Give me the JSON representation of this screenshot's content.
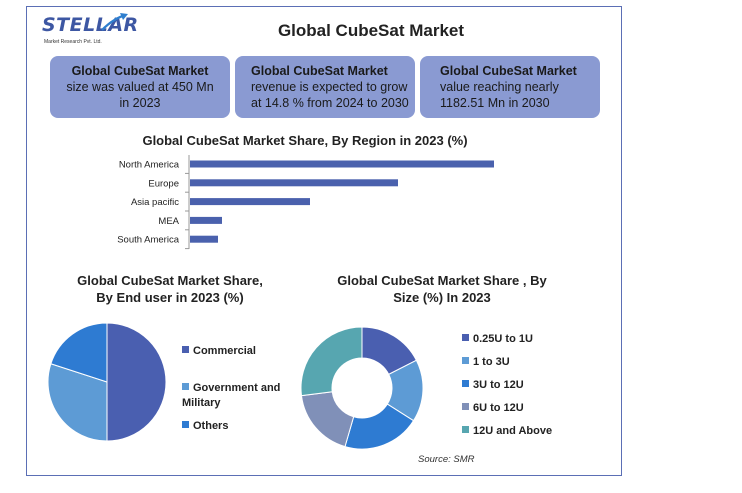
{
  "logo": {
    "word": "STELLAR",
    "tagline": "Market Research Pvt. Ltd."
  },
  "main_title": "Global CubeSat Market",
  "cards": [
    {
      "heading": "Global CubeSat Market",
      "lines": [
        "size was valued at 450 Mn",
        "in 2023"
      ]
    },
    {
      "heading": "Global CubeSat Market",
      "lines": [
        "revenue is expected to grow",
        "at 14.8 % from 2024 to 2030"
      ]
    },
    {
      "heading": "Global CubeSat Market",
      "lines": [
        "value reaching nearly",
        "1182.51 Mn in 2030"
      ]
    }
  ],
  "source": "Source: SMR",
  "colors": {
    "bar": "#4a61ad",
    "card": "#8a9ad2",
    "frame": "#5b6fb5"
  },
  "chart_data": [
    {
      "type": "bar",
      "orientation": "horizontal",
      "title": "Global CubeSat Market Share, By Region in 2023 (%)",
      "categories": [
        "North America",
        "Europe",
        "Asia pacific",
        "MEA",
        "South America"
      ],
      "values": [
        38,
        26,
        15,
        4,
        3.5
      ],
      "xlim": [
        0,
        40
      ],
      "grid": false
    },
    {
      "type": "pie",
      "title": "Global CubeSat Market Share, By End user in 2023 (%)",
      "title_lines": [
        "Global CubeSat Market Share,",
        "By End user in 2023 (%)"
      ],
      "categories": [
        "Commercial",
        "Government and Military",
        "Others"
      ],
      "legend_lines": [
        [
          "Commercial"
        ],
        [
          "Government and",
          "Military"
        ],
        [
          "Others"
        ]
      ],
      "values": [
        50,
        30,
        20
      ],
      "colors": [
        "#4a5fb0",
        "#5d9bd5",
        "#2e7bd2"
      ],
      "legend": "right"
    },
    {
      "type": "pie",
      "subtype": "donut",
      "title": "Global CubeSat Market Share , By Size (%) In 2023",
      "title_lines": [
        "Global CubeSat Market Share , By",
        "Size (%) In 2023"
      ],
      "categories": [
        "0.25U to 1U",
        "1 to 3U",
        "3U to 12U",
        "6U to 12U",
        "12U and Above"
      ],
      "values": [
        17.5,
        16.5,
        20.5,
        18.5,
        27
      ],
      "colors": [
        "#4a5fb0",
        "#5d9bd5",
        "#2e7bd2",
        "#8090b8",
        "#57a6b0"
      ],
      "legend": "right"
    }
  ]
}
